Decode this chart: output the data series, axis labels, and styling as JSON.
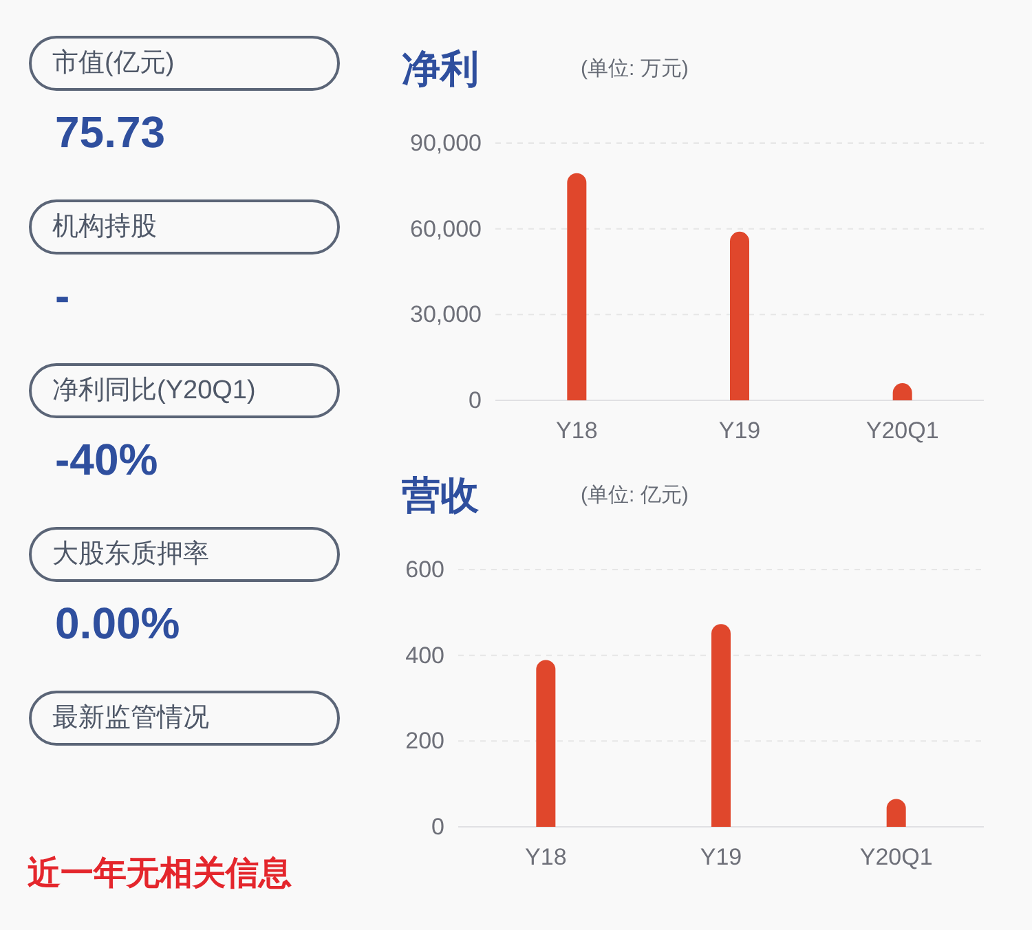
{
  "chart_data": [
    {
      "type": "other",
      "annotations": [
        "市值(亿元)",
        "75.73",
        "机构持股",
        "-",
        "净利同比(Y20Q1)",
        "-40%",
        "大股东质押率",
        "0.00%",
        "最新监管情况",
        "近一年无相关信息"
      ]
    },
    {
      "type": "bar",
      "title": "净利",
      "subtitle": "(单位: 万元)",
      "categories": [
        "Y18",
        "Y19",
        "Y20Q1"
      ],
      "values": [
        79500,
        59000,
        6000
      ],
      "color": "#e0472c",
      "ylim": [
        0,
        90000
      ],
      "yticks": [
        0,
        {
          "value": 30000,
          "label": "30,000"
        },
        {
          "value": 60000,
          "label": "60,000"
        },
        {
          "value": 90000,
          "label": "90,000"
        }
      ],
      "grid": "y"
    },
    {
      "type": "bar",
      "title": "营收",
      "subtitle": "(单位: 亿元)",
      "categories": [
        "Y18",
        "Y19",
        "Y20Q1"
      ],
      "values": [
        389,
        473,
        65
      ],
      "color": "#e0472c",
      "ylim": [
        0,
        600
      ],
      "yticks": [
        0,
        200,
        400,
        600
      ],
      "grid": "y"
    }
  ]
}
